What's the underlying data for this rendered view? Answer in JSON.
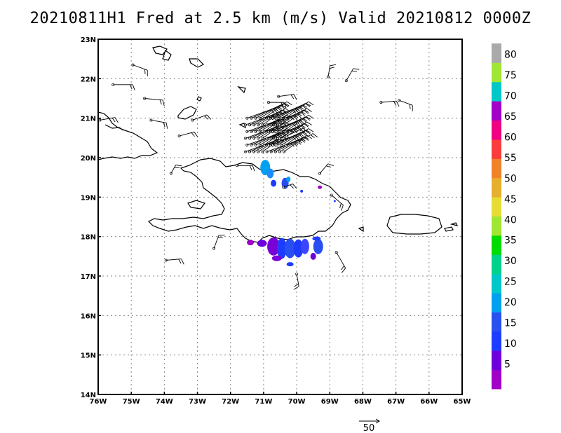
{
  "title": "20210811H1 Fred at 2.5 km (m/s) Valid 20210812 0000Z",
  "axes": {
    "lon_labels": [
      "76W",
      "75W",
      "74W",
      "73W",
      "72W",
      "71W",
      "70W",
      "69W",
      "68W",
      "67W",
      "66W",
      "65W"
    ],
    "lat_labels": [
      "14N",
      "15N",
      "16N",
      "17N",
      "18N",
      "19N",
      "20N",
      "21N",
      "22N",
      "23N"
    ],
    "lon_range": [
      -76,
      -65
    ],
    "lat_range": [
      14,
      23
    ],
    "grid": "dotted"
  },
  "colorbar": {
    "labels": [
      "5",
      "10",
      "15",
      "20",
      "25",
      "30",
      "35",
      "40",
      "45",
      "50",
      "55",
      "60",
      "65",
      "70",
      "75",
      "80"
    ],
    "colors": [
      "#a000c8",
      "#6e00dc",
      "#1e3cff",
      "#2850f0",
      "#00a0f0",
      "#00c8c8",
      "#00d28c",
      "#00dc00",
      "#a0e632",
      "#e6dc32",
      "#e6af2d",
      "#f08228",
      "#fa3c3c",
      "#f00082",
      "#a000c8",
      "#00c8c8",
      "#a0e632",
      "#aaaaaa"
    ]
  },
  "reference_vector": {
    "label": "50"
  }
}
